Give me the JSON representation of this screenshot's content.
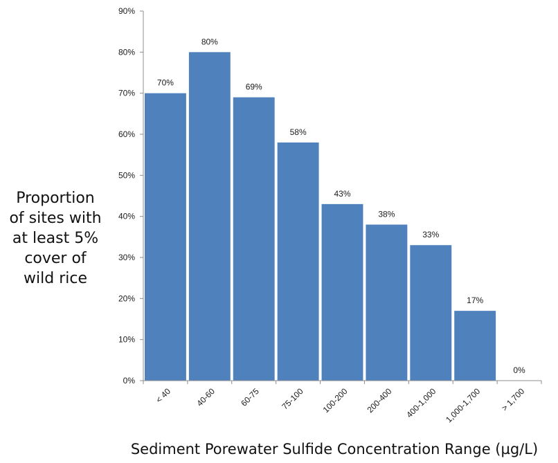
{
  "chart_data": {
    "type": "bar",
    "title": "",
    "ylabel_lines": [
      "Proportion",
      "of sites with",
      "at least 5%",
      "cover of",
      "wild rice"
    ],
    "xlabel": "Sediment Porewater Sulfide Concentration Range (µg/L)",
    "categories": [
      "< 40",
      "40-60",
      "60-75",
      "75-100",
      "100-200",
      "200-400",
      "400-1,000",
      "1,000-1,700",
      "> 1,700"
    ],
    "values": [
      70,
      80,
      69,
      58,
      43,
      38,
      33,
      17,
      0
    ],
    "data_labels": [
      "70%",
      "80%",
      "69%",
      "58%",
      "43%",
      "38%",
      "33%",
      "17%",
      "0%"
    ],
    "ylim": [
      0,
      90
    ],
    "yticks": [
      0,
      10,
      20,
      30,
      40,
      50,
      60,
      70,
      80,
      90
    ],
    "ytick_labels": [
      "0%",
      "10%",
      "20%",
      "30%",
      "40%",
      "50%",
      "60%",
      "70%",
      "80%",
      "90%"
    ],
    "grid": false,
    "legend": "none",
    "bar_color": "#4f81bd"
  }
}
